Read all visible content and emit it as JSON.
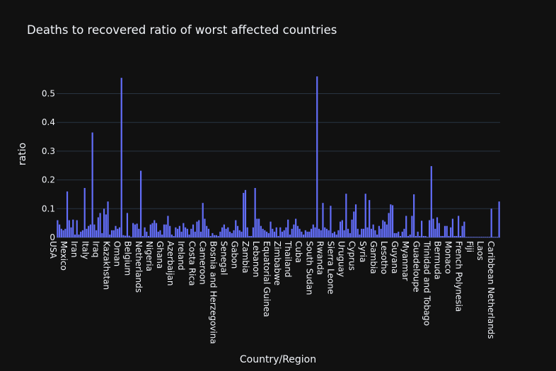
{
  "chart_data": {
    "type": "bar",
    "title": "Deaths to recovered ratio of worst affected countries",
    "xlabel": "Country/Region",
    "ylabel": "ratio",
    "ylim": [
      0,
      0.58
    ],
    "yticks": [
      0,
      0.1,
      0.2,
      0.3,
      0.4,
      0.5
    ],
    "ytick_labels": [
      "0",
      "0.1",
      "0.2",
      "0.3",
      "0.4",
      "0.5"
    ],
    "grid": true,
    "bar_color": "#636efa",
    "tick_labels": [
      "USA",
      "Mexico",
      "Iran",
      "Italy",
      "Iraq",
      "Kazakhstan",
      "Oman",
      "Belgium",
      "Netherlands",
      "Nigeria",
      "Ghana",
      "Azerbaijan",
      "Ireland",
      "Costa Rica",
      "Cameroon",
      "Bosnia and Herzegovina",
      "Senegal",
      "Gabon",
      "Zambia",
      "Lebanon",
      "Equatorial Guinea",
      "Zimbabwe",
      "Thailand",
      "Cuba",
      "South Sudan",
      "Rwanda",
      "Sierra Leone",
      "Uruguay",
      "Cyprus",
      "Syria",
      "Gambia",
      "Lesotho",
      "Guyana",
      "Myanmar",
      "Guadeloupe",
      "Trinidad and Tobago",
      "Bermuda",
      "Monaco",
      "French Polynesia",
      "Fiji",
      "Laos",
      "Caribbean Netherlands"
    ],
    "values": [
      0.06,
      0.045,
      0.03,
      0.025,
      0.03,
      0.16,
      0.06,
      0.035,
      0.062,
      0.01,
      0.06,
      0.01,
      0.02,
      0.025,
      0.172,
      0.03,
      0.04,
      0.045,
      0.365,
      0.045,
      0.025,
      0.07,
      0.085,
      0.015,
      0.1,
      0.08,
      0.125,
      0.01,
      0.025,
      0.025,
      0.04,
      0.03,
      0.035,
      0.555,
      0.008,
      0.006,
      0.085,
      0.006,
      0.002,
      0.05,
      0.045,
      0.048,
      0.03,
      0.232,
      0.005,
      0.035,
      0.02,
      0.005,
      0.045,
      0.05,
      0.06,
      0.05,
      0.02,
      0.025,
      0.01,
      0.045,
      0.045,
      0.075,
      0.04,
      0.01,
      0.005,
      0.035,
      0.03,
      0.04,
      0.02,
      0.05,
      0.035,
      0.03,
      0.01,
      0.03,
      0.045,
      0.02,
      0.055,
      0.06,
      0.02,
      0.12,
      0.065,
      0.04,
      0.03,
      0.005,
      0.015,
      0.008,
      0.008,
      0.005,
      0.02,
      0.035,
      0.045,
      0.03,
      0.035,
      0.02,
      0.015,
      0.025,
      0.06,
      0.04,
      0.025,
      0.02,
      0.155,
      0.165,
      0.035,
      0.005,
      0.005,
      0.035,
      0.172,
      0.065,
      0.065,
      0.04,
      0.03,
      0.025,
      0.02,
      0.015,
      0.055,
      0.03,
      0.02,
      0.035,
      0.005,
      0.035,
      0.02,
      0.025,
      0.035,
      0.062,
      0.01,
      0.03,
      0.045,
      0.065,
      0.04,
      0.03,
      0.02,
      0.01,
      0.025,
      0.02,
      0.02,
      0.03,
      0.045,
      0.035,
      0.56,
      0.03,
      0.025,
      0.12,
      0.035,
      0.03,
      0.025,
      0.11,
      0.015,
      0.02,
      0.01,
      0.025,
      0.055,
      0.06,
      0.025,
      0.152,
      0.03,
      0.015,
      0.062,
      0.09,
      0.115,
      0.03,
      0.01,
      0.03,
      0.03,
      0.152,
      0.035,
      0.13,
      0.03,
      0.045,
      0.025,
      0.01,
      0.04,
      0.03,
      0.06,
      0.055,
      0.045,
      0.085,
      0.115,
      0.112,
      0.015,
      0.015,
      0.02,
      0.005,
      0.02,
      0.03,
      0.075,
      0.005,
      0.01,
      0.075,
      0.15,
      0.005,
      0.02,
      0.005,
      0.058,
      0.005,
      0.005,
      0.002,
      0.06,
      0.248,
      0.065,
      0.03,
      0.07,
      0.05,
      0.005,
      0.005,
      0.04,
      0.04,
      0.005,
      0.035,
      0.065,
      0.005,
      0.005,
      0.075,
      0.005,
      0.04,
      0.055,
      0.002,
      0.002,
      0.002,
      0.002,
      0.002,
      0.002,
      0.002,
      0.002,
      0.002,
      0.002,
      0.002,
      0.002,
      0.002,
      0.1,
      0.002,
      0.002,
      0.002,
      0.125
    ]
  }
}
